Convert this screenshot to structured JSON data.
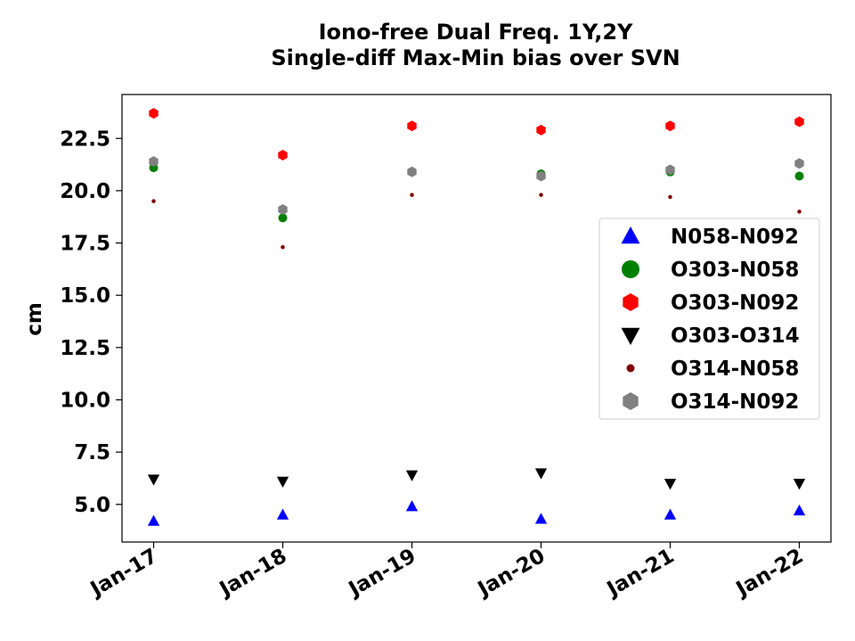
{
  "chart_data": {
    "type": "scatter",
    "title": "Iono-free Dual Freq. 1Y,2Y",
    "subtitle": "Single-diff Max-Min bias over SVN",
    "xlabel": "",
    "ylabel": "cm",
    "x": [
      "Jan-17",
      "Jan-18",
      "Jan-19",
      "Jan-20",
      "Jan-21",
      "Jan-22"
    ],
    "x_ticks": [
      "Jan-17",
      "Jan-18",
      "Jan-19",
      "Jan-20",
      "Jan-21",
      "Jan-22"
    ],
    "y_ticks": [
      "5.0",
      "7.5",
      "10.0",
      "12.5",
      "15.0",
      "17.5",
      "20.0",
      "22.5"
    ],
    "ylim": [
      3.2,
      24.6
    ],
    "grid": false,
    "legend_position": "center-right",
    "series": [
      {
        "name": "N058-N092",
        "marker": "triangle-up",
        "color": "#0000ff",
        "values": [
          4.2,
          4.5,
          4.9,
          4.3,
          4.5,
          4.7
        ]
      },
      {
        "name": "O303-N058",
        "marker": "circle",
        "color": "#008000",
        "values": [
          21.1,
          18.7,
          20.9,
          20.8,
          20.9,
          20.7
        ]
      },
      {
        "name": "O303-N092",
        "marker": "hexagon",
        "color": "#ff0000",
        "values": [
          23.7,
          21.7,
          23.1,
          22.9,
          23.1,
          23.3
        ]
      },
      {
        "name": "O303-O314",
        "marker": "triangle-down",
        "color": "#000000",
        "values": [
          6.2,
          6.1,
          6.4,
          6.5,
          6.0,
          6.0
        ]
      },
      {
        "name": "O314-N058",
        "marker": "point",
        "color": "#800000",
        "values": [
          19.5,
          17.3,
          19.8,
          19.8,
          19.7,
          19.0
        ]
      },
      {
        "name": "O314-N092",
        "marker": "hexagon",
        "color": "#808080",
        "values": [
          21.4,
          19.1,
          20.9,
          20.7,
          21.0,
          21.3
        ]
      }
    ]
  }
}
